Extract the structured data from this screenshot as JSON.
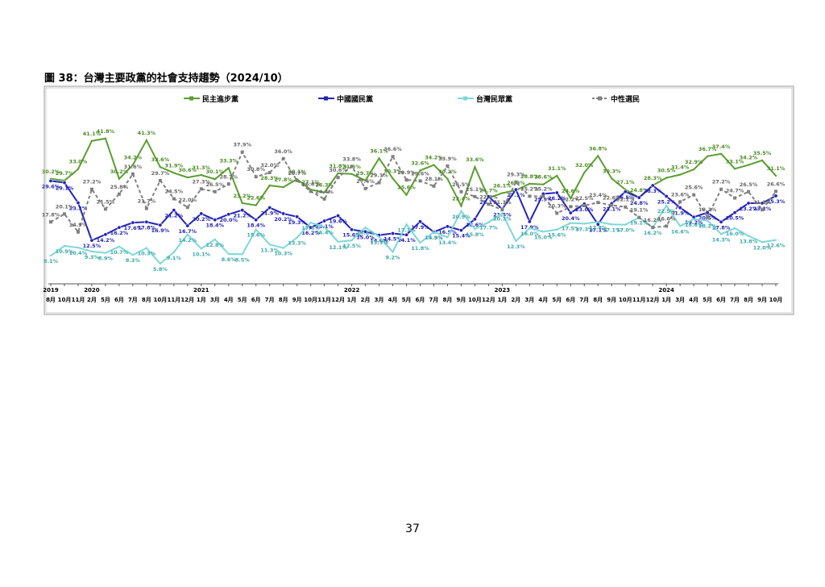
{
  "page_title": "圖 38：台灣主要政黨的社會支持趨勢（2024/10）",
  "page_number": "37",
  "chart_data": {
    "type": "line",
    "ylim": [
      0,
      45
    ],
    "categories": [
      "8月",
      "10月",
      "11月",
      "2月",
      "5月",
      "6月",
      "7月",
      "8月",
      "10月",
      "11月",
      "12月",
      "1月",
      "3月",
      "4月",
      "5月",
      "6月",
      "7月",
      "8月",
      "9月",
      "10月",
      "11月",
      "12月",
      "1月",
      "2月",
      "3月",
      "4月",
      "5月",
      "6月",
      "7月",
      "8月",
      "9月",
      "10月",
      "12月",
      "1月",
      "2月",
      "3月",
      "4月",
      "5月",
      "6月",
      "7月",
      "8月",
      "9月",
      "10月",
      "11月",
      "12月",
      "1月",
      "3月",
      "4月",
      "5月",
      "6月",
      "7月",
      "8月",
      "9月",
      "10月"
    ],
    "years": [
      "2019",
      null,
      null,
      "2020",
      null,
      null,
      null,
      null,
      null,
      null,
      null,
      "2021",
      null,
      null,
      null,
      null,
      null,
      null,
      null,
      null,
      null,
      null,
      "2022",
      null,
      null,
      null,
      null,
      null,
      null,
      null,
      null,
      null,
      null,
      "2023",
      null,
      null,
      null,
      null,
      null,
      null,
      null,
      null,
      null,
      null,
      null,
      "2024",
      null,
      null,
      null,
      null,
      null,
      null,
      null,
      null
    ],
    "series": [
      {
        "name": "民主進步黨",
        "color": "#5a9e2f",
        "values": [
          30.2,
          29.7,
          33.0,
          41.1,
          41.8,
          30.2,
          34.2,
          41.3,
          33.6,
          31.9,
          30.6,
          31.3,
          30.1,
          33.3,
          23.2,
          22.6,
          28.3,
          27.8,
          30.1,
          27.1,
          26.3,
          31.8,
          31.6,
          29.7,
          36.1,
          30.3,
          25.6,
          32.6,
          34.2,
          30.2,
          22.4,
          33.6,
          24.7,
          26.1,
          26.9,
          28.8,
          28.6,
          31.1,
          24.6,
          32.0,
          36.8,
          30.3,
          27.1,
          24.8,
          28.3,
          30.5,
          31.4,
          32.9,
          36.7,
          37.4,
          33.1,
          34.2,
          35.5,
          31.1
        ],
        "value_labels": [
          "30.2%",
          "29.7%",
          "33.0%",
          "41.1%",
          "41.8%",
          "30.2%",
          "34.2%",
          "41.3%",
          "33.6%",
          "31.9%",
          "30.6%",
          "31.3%",
          "30.1%",
          "33.3%",
          "23.2%",
          "22.6%",
          "28.3%",
          "27.8%",
          "30.1%",
          "27.1%",
          "26.3%",
          "31.8%",
          "31.6%",
          "29.7%",
          "36.1%",
          "30.3%",
          "25.6%",
          "32.6%",
          "34.2%",
          "30.2%",
          "22.4%",
          "33.6%",
          "24.7%",
          "26.1%",
          "26.9%",
          "28.8%",
          "28.6%",
          "31.1%",
          "24.6%",
          "32.0%",
          "36.8%",
          "30.3%",
          "27.1%",
          "24.8%",
          "28.3%",
          "30.5%",
          "31.4%",
          "32.9%",
          "36.7%",
          "37.4%",
          "33.1%",
          "34.2%",
          "35.5%",
          "31.1%"
        ]
      },
      {
        "name": "中國國民黨",
        "color": "#2323b8",
        "values": [
          29.6,
          29.1,
          23.3,
          12.5,
          14.2,
          16.2,
          17.6,
          17.8,
          16.9,
          21.2,
          16.7,
          20.2,
          18.4,
          20.0,
          21.2,
          18.4,
          21.9,
          20.2,
          19.3,
          16.2,
          18.1,
          19.6,
          15.6,
          15.0,
          14.0,
          14.5,
          14.1,
          17.9,
          14.9,
          16.5,
          15.4,
          18.6,
          25.1,
          21.5,
          27.1,
          17.9,
          25.9,
          26.2,
          20.4,
          23.0,
          17.1,
          23.1,
          26.5,
          24.8,
          28.3,
          25.2,
          21.9,
          19.2,
          20.5,
          17.8,
          20.5,
          23.2,
          23.2,
          25.3
        ],
        "value_labels": [
          "29.6%",
          "29.1%",
          "23.3%",
          "12.5%",
          "14.2%",
          "16.2%",
          "17.6%",
          "17.8%",
          "16.9%",
          "21.2%",
          "16.7%",
          "20.2%",
          "18.4%",
          "20.0%",
          "21.2%",
          "18.4%",
          "21.9%",
          "20.2%",
          "19.3%",
          "16.2%",
          "18.1%",
          "19.6%",
          "15.6%",
          "15.0%",
          "14.0%",
          "14.5%",
          "14.1%",
          "17.9%",
          "14.9%",
          "16.5%",
          "15.4%",
          "18.6%",
          "25.1%",
          "21.5%",
          "27.1%",
          "17.9%",
          "25.9%",
          "26.2%",
          "20.4%",
          "23.0%",
          "17.1%",
          "23.1%",
          "26.5%",
          "24.8%",
          "28.3%",
          "25.2%",
          "21.9%",
          "19.2%",
          "20.5%",
          "17.8%",
          "20.5%",
          "23.2%",
          "23.2%",
          "25.3%"
        ]
      },
      {
        "name": "台灣民眾黨",
        "color": "#7fd8d8",
        "values": [
          8.1,
          10.9,
          10.4,
          9.3,
          8.9,
          10.7,
          8.3,
          10.3,
          5.8,
          9.1,
          14.2,
          10.1,
          12.8,
          8.6,
          8.5,
          15.6,
          11.3,
          10.3,
          13.3,
          17.6,
          16.4,
          12.1,
          12.5,
          16.2,
          13.5,
          9.2,
          17.1,
          11.8,
          14.9,
          13.4,
          20.9,
          15.8,
          17.7,
          20.3,
          12.3,
          16.0,
          15.0,
          15.6,
          17.5,
          17.3,
          17.8,
          17.1,
          17.0,
          19.1,
          16.2,
          22.5,
          16.6,
          18.6,
          18.2,
          14.3,
          16.0,
          13.8,
          12.0,
          12.6
        ],
        "value_labels": [
          "8.1%",
          "10.9%",
          "10.4%",
          "9.3%",
          "8.9%",
          "10.7%",
          "8.3%",
          "10.3%",
          "5.8%",
          "9.1%",
          "14.2%",
          "10.1%",
          "12.8%",
          "8.6%",
          "8.5%",
          "15.6%",
          "11.3%",
          "10.3%",
          "13.3%",
          "17.6%",
          "16.4%",
          "12.1%",
          "12.5%",
          "16.2%",
          "13.5%",
          "9.2%",
          "17.1%",
          "11.8%",
          "14.9%",
          "13.4%",
          "20.9%",
          "15.8%",
          "17.7%",
          "20.3%",
          "12.3%",
          "16.0%",
          "15.0%",
          "15.6%",
          "17.5%",
          "17.3%",
          "17.8%",
          "17.1%",
          "17.0%",
          "19.1%",
          "16.2%",
          "22.5%",
          "16.6%",
          "18.6%",
          "18.2%",
          "14.3%",
          "16.0%",
          "13.8%",
          "12.0%",
          "12.6%"
        ]
      },
      {
        "name": "中性選民",
        "color": "#808080",
        "dashed": true,
        "values": [
          17.8,
          20.1,
          14.9,
          27.2,
          21.5,
          25.8,
          31.6,
          21.7,
          29.7,
          24.5,
          22.0,
          27.3,
          26.5,
          28.7,
          37.9,
          30.8,
          32.0,
          36.0,
          29.7,
          26.6,
          24.4,
          30.6,
          33.8,
          27.4,
          29.1,
          36.6,
          29.9,
          29.6,
          28.1,
          33.9,
          26.5,
          25.1,
          22.9,
          21.3,
          29.3,
          25.2,
          25.2,
          20.3,
          22.2,
          22.5,
          23.4,
          22.6,
          22.1,
          19.1,
          16.2,
          16.6,
          23.6,
          25.6,
          19.2,
          27.2,
          24.7,
          26.5,
          21.3,
          26.6
        ],
        "value_labels": [
          "17.8%",
          "20.1%",
          "14.9%",
          "27.2%",
          "21.5%",
          "25.8%",
          "31.6%",
          "21.7%",
          "29.7%",
          "24.5%",
          "22.0%",
          "27.3%",
          "26.5%",
          "28.7%",
          "37.9%",
          "30.8%",
          "32.0%",
          "36.0%",
          "29.7%",
          "26.6%",
          "24.4%",
          "30.6%",
          "33.8%",
          "27.4%",
          "29.1%",
          "36.6%",
          "29.9%",
          "29.6%",
          "28.1%",
          "33.9%",
          "26.5%",
          "25.1%",
          "22.9%",
          "21.3%",
          "29.3%",
          "25.2%",
          "25.2%",
          "20.3%",
          "22.2%",
          "22.5%",
          "23.4%",
          "22.6%",
          "22.1%",
          "19.1%",
          "16.2%",
          "16.6%",
          "23.6%",
          "25.6%",
          "19.2%",
          "27.2%",
          "24.7%",
          "26.5%",
          "21.3%",
          "26.6%"
        ]
      }
    ]
  }
}
